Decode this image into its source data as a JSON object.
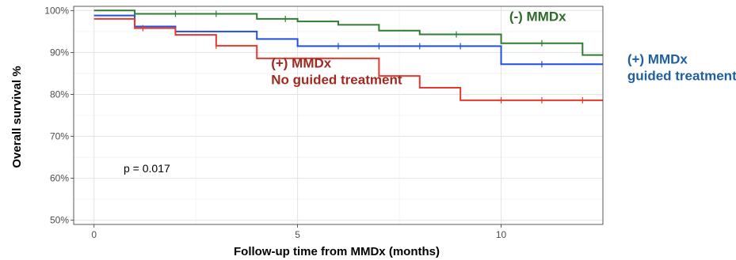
{
  "chart_data": {
    "type": "line",
    "subtype": "kaplan-meier step",
    "title": "",
    "xlabel": "Follow-up time from MMDx (months)",
    "ylabel": "Overall survival %",
    "xlim": [
      -0.5,
      12.5
    ],
    "ylim": [
      49,
      101
    ],
    "x_ticks": [
      0,
      5,
      10
    ],
    "y_ticks": [
      50,
      60,
      70,
      80,
      90,
      100
    ],
    "y_tick_labels": [
      "50%",
      "60%",
      "70%",
      "80%",
      "90%",
      "100%"
    ],
    "grid": true,
    "legend": "none (direct labels)",
    "pvalue_text": "p = 0.017",
    "series": [
      {
        "name": "(-) MMDx",
        "color": "#2e7d32",
        "steps": [
          [
            0,
            100
          ],
          [
            1,
            99.2
          ],
          [
            4,
            98
          ],
          [
            5,
            97.4
          ],
          [
            6,
            96.6
          ],
          [
            7,
            95.2
          ],
          [
            8,
            94.3
          ],
          [
            10,
            92.2
          ],
          [
            12,
            89.4
          ],
          [
            12.5,
            89.4
          ]
        ],
        "censor_x": [
          2,
          3,
          4.7,
          8.9,
          11
        ]
      },
      {
        "name": "(+) MMDx guided treatment",
        "color": "#1f4fe0",
        "steps": [
          [
            0,
            98.8
          ],
          [
            1,
            96.2
          ],
          [
            2,
            95
          ],
          [
            4,
            93.2
          ],
          [
            5,
            91.5
          ],
          [
            10,
            87.2
          ],
          [
            12.5,
            87.2
          ]
        ],
        "censor_x": [
          6,
          7,
          8,
          9,
          11
        ]
      },
      {
        "name": "(+) MMDx No guided treatment",
        "color": "#e8382b",
        "steps": [
          [
            0,
            98
          ],
          [
            1,
            95.8
          ],
          [
            2,
            94.2
          ],
          [
            3,
            91.6
          ],
          [
            4,
            88.6
          ],
          [
            7,
            84.4
          ],
          [
            8,
            81.6
          ],
          [
            9,
            78.6
          ],
          [
            12.5,
            78.6
          ]
        ],
        "censor_x": [
          1.2,
          3,
          10,
          11,
          12
        ]
      }
    ],
    "annotations": [
      {
        "lines": [
          "(-) MMDx"
        ],
        "color": "#2e6b2a",
        "x": 10.2,
        "y": 97.5
      },
      {
        "lines": [
          "(+) MMDx",
          "guided treatment"
        ],
        "color": "#1f5fa0",
        "x": 13.1,
        "y": 87.3
      },
      {
        "lines": [
          "(+) MMDx",
          "No guided treatment"
        ],
        "color": "#9e2a22",
        "x": 4.35,
        "y": 86.4
      }
    ]
  }
}
